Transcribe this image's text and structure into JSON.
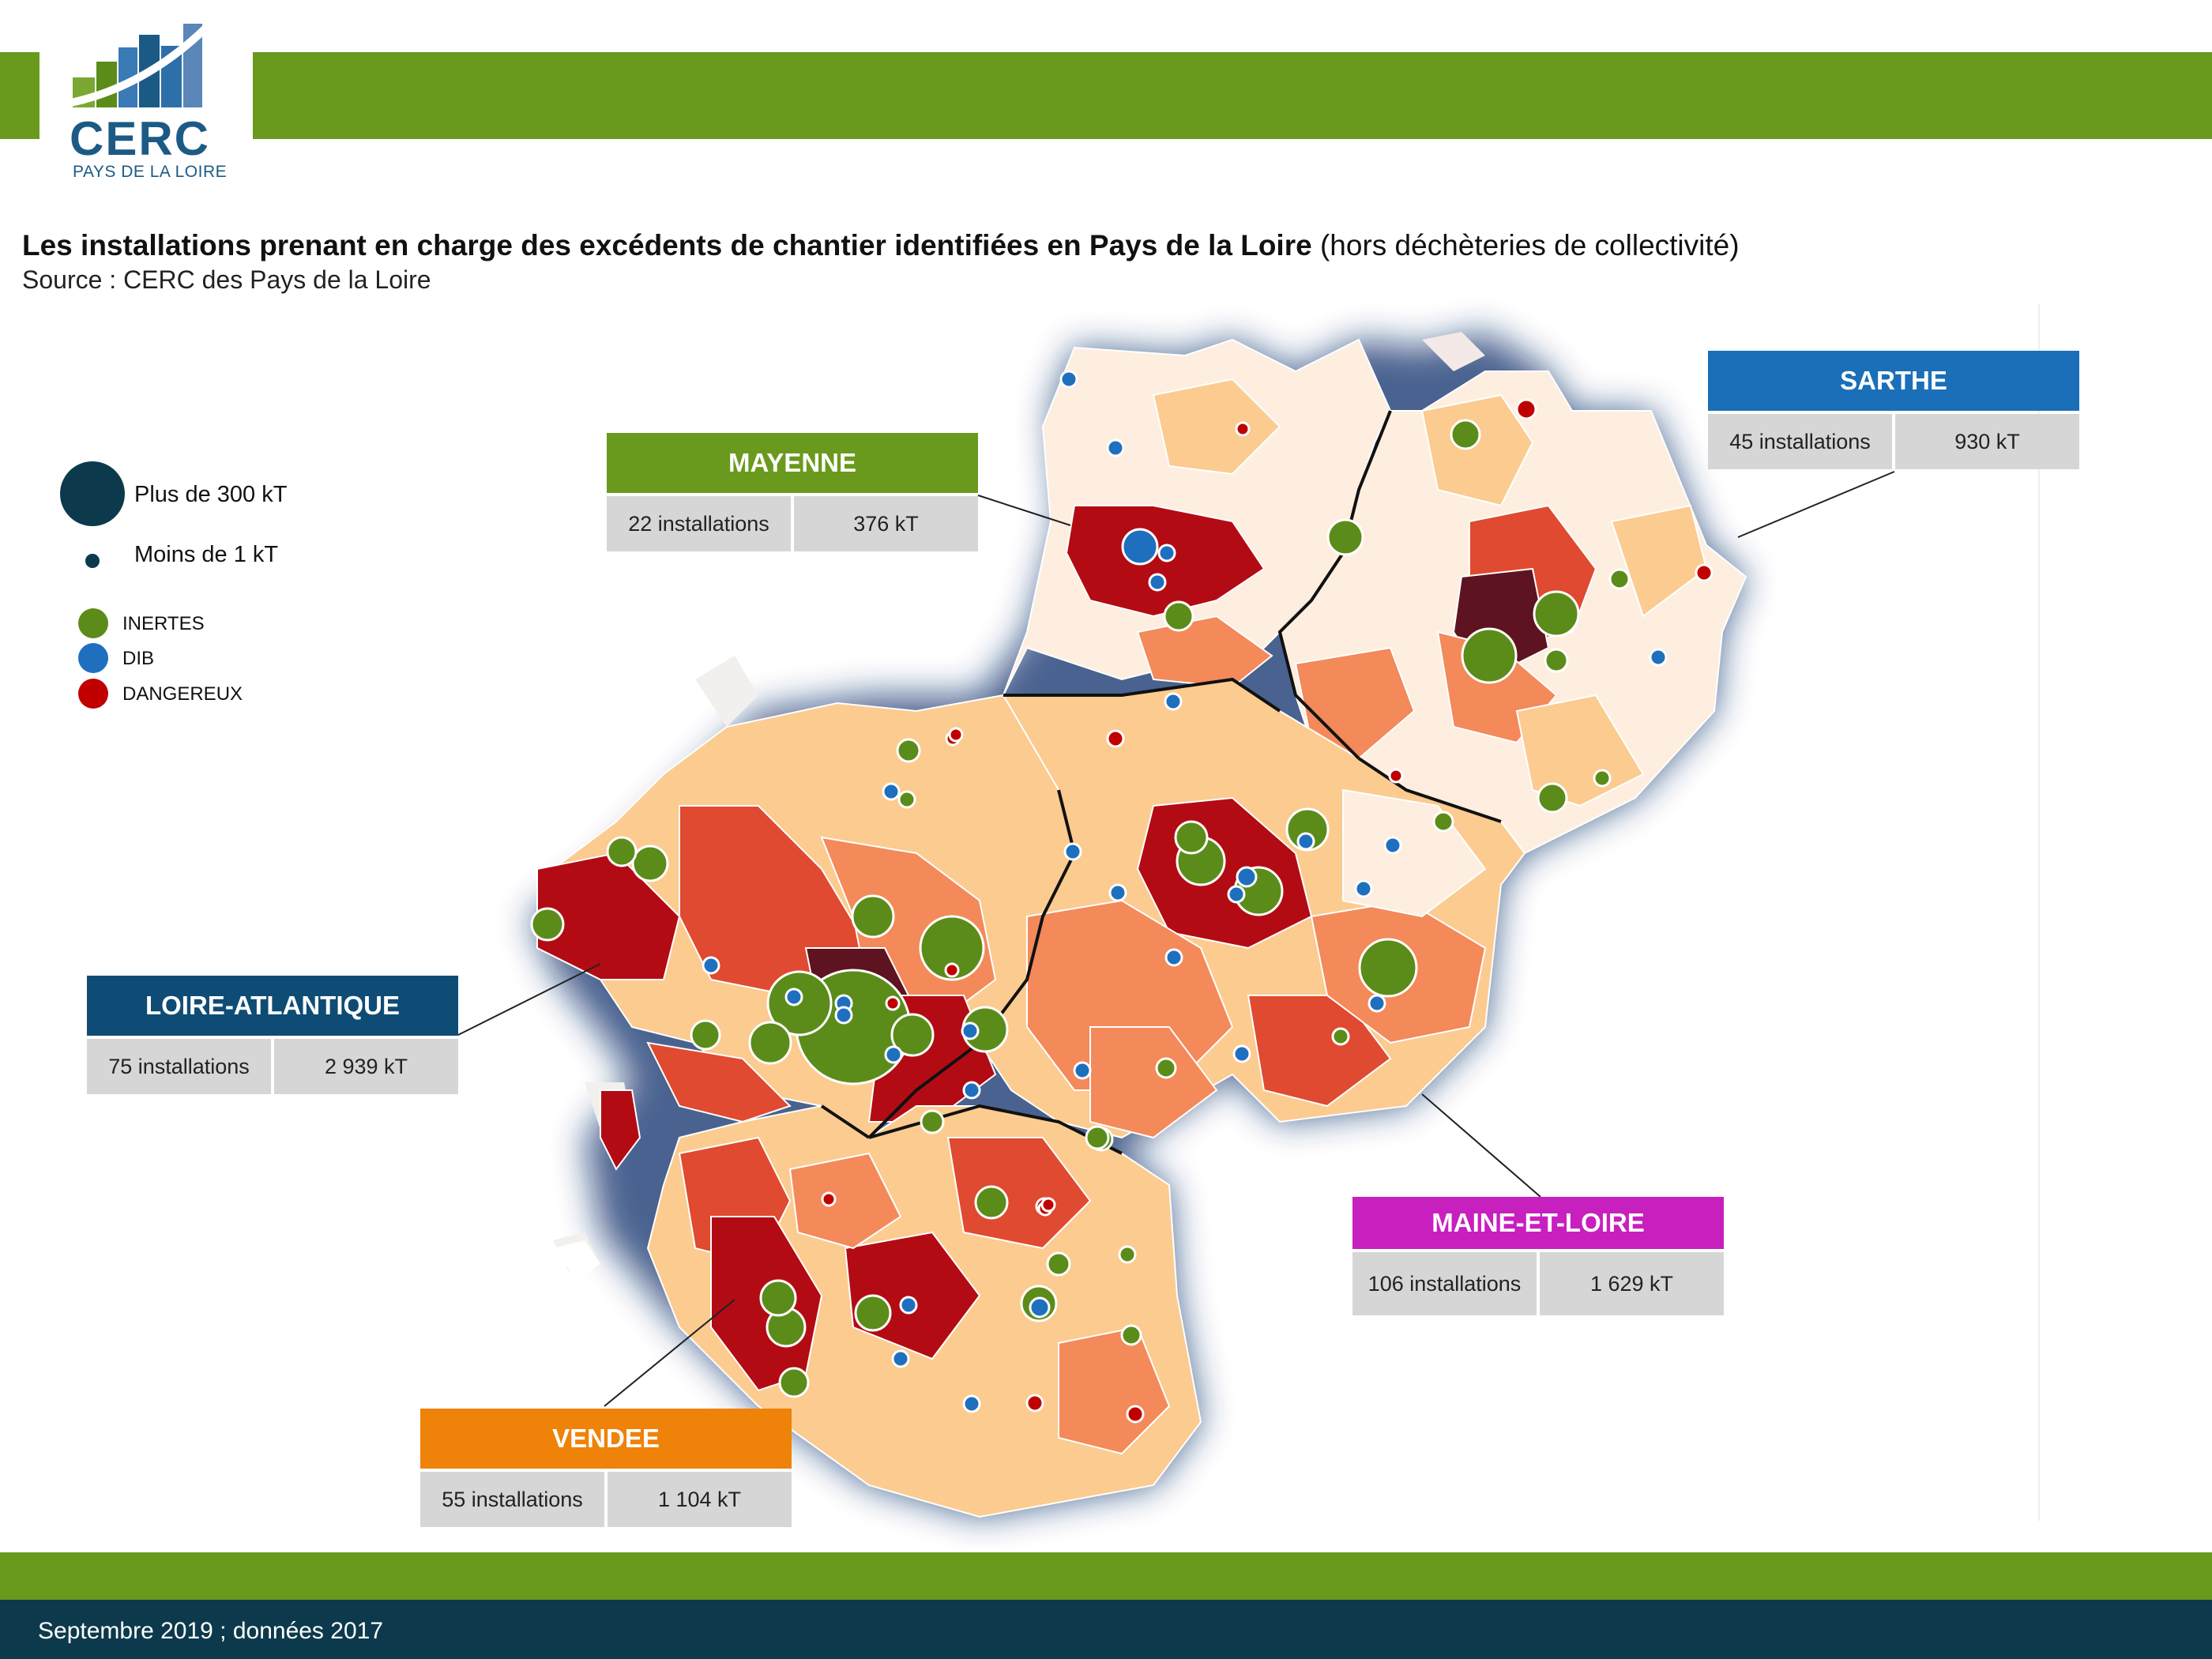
{
  "header": {
    "logo_word": "CERC",
    "logo_sub": "PAYS DE LA LOIRE",
    "title_bold": "Les installations prenant en charge des excédents de chantier identifiées en Pays de la Loire",
    "title_rest": " (hors déchèteries de collectivité)",
    "source": "Source : CERC des Pays de la Loire"
  },
  "legend": {
    "size_large": "Plus de 300 kT",
    "size_small": "Moins de 1 kT",
    "categories": [
      {
        "label": "INERTES",
        "color": "#5b8c1a"
      },
      {
        "label": "DIB",
        "color": "#1f6fbf"
      },
      {
        "label": "DANGEREUX",
        "color": "#c00000"
      }
    ]
  },
  "departments": [
    {
      "name": "MAYENNE",
      "installations": "22 installations",
      "tonnage": "376 kT",
      "color": "#6a9a1d"
    },
    {
      "name": "SARTHE",
      "installations": "45 installations",
      "tonnage": "930 kT",
      "color": "#1a6fb8"
    },
    {
      "name": "LOIRE-ATLANTIQUE",
      "installations": "75 installations",
      "tonnage": "2 939 kT",
      "color": "#0f4c75"
    },
    {
      "name": "MAINE-ET-LOIRE",
      "installations": "106 installations",
      "tonnage": "1 629 kT",
      "color": "#c81fbf"
    },
    {
      "name": "VENDEE",
      "installations": "55 installations",
      "tonnage": "1 104 kT",
      "color": "#ef8208"
    }
  ],
  "footer": {
    "text": "Septembre 2019 ; données 2017"
  },
  "map_colors": {
    "very_light": "#fdeee0",
    "light": "#fbcb90",
    "medium": "#f4895a",
    "strong": "#df4a30",
    "dark": "#b30b14",
    "darkest": "#5e1320"
  }
}
